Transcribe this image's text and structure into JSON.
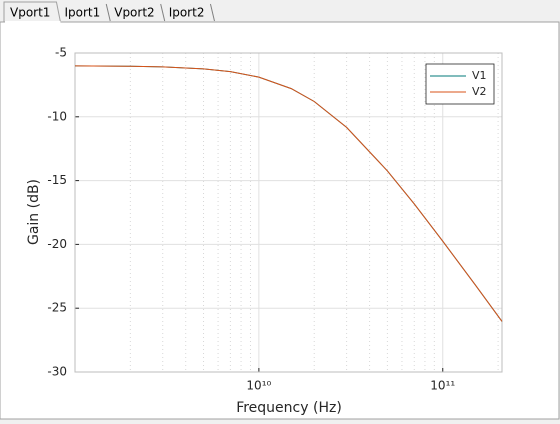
{
  "tabs": [
    "Vport1",
    "Iport1",
    "Vport2",
    "Iport2"
  ],
  "chart_data": {
    "type": "line",
    "x_label": "Frequency (Hz)",
    "y_label": "Gain (dB)",
    "x": [
      1000000000,
      2000000000,
      3000000000,
      5000000000,
      7000000000,
      10000000000,
      15000000000,
      20000000000,
      30000000000,
      50000000000,
      70000000000,
      100000000000,
      150000000000,
      210000000000
    ],
    "series": [
      {
        "name": "V1",
        "color": "#00797a",
        "values": [
          -6.01,
          -6.04,
          -6.09,
          -6.24,
          -6.46,
          -6.89,
          -7.79,
          -8.8,
          -10.83,
          -14.24,
          -16.83,
          -19.75,
          -23.16,
          -26.04
        ]
      },
      {
        "name": "V2",
        "color": "#d95319",
        "values": [
          -6.01,
          -6.04,
          -6.09,
          -6.24,
          -6.46,
          -6.89,
          -7.79,
          -8.8,
          -10.83,
          -14.24,
          -16.83,
          -19.75,
          -23.16,
          -26.04
        ]
      }
    ],
    "xlim": [
      1000000000,
      210000000000
    ],
    "x_log": true,
    "xticks": [
      {
        "value": 10000000000,
        "label": "10¹⁰"
      },
      {
        "value": 100000000000,
        "label": "10¹¹"
      }
    ],
    "ylim": [
      -30,
      -5
    ],
    "yticks": [
      -30,
      -25,
      -20,
      -15,
      -10,
      -5
    ],
    "grid": true,
    "minor_grid": true,
    "legend": "upper right"
  }
}
